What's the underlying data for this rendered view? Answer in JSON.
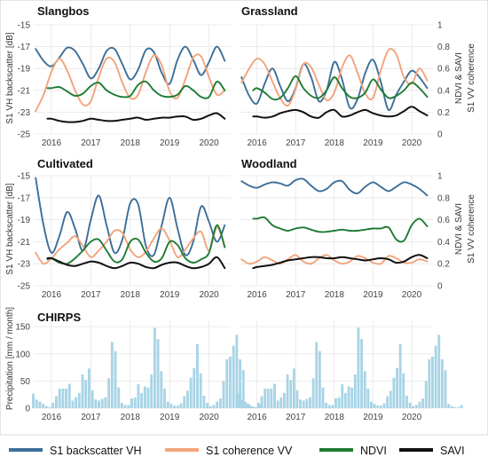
{
  "colors": {
    "s1_backscatter_vh": "#3c6e98",
    "s1_coherence_vv": "#f2a47b",
    "ndvi": "#1e7b34",
    "savi": "#111111",
    "precip_bar": "#a8d4e6"
  },
  "axis_labels": {
    "backscatter": "S1 VH backscatter [dB]",
    "ndvi_savi": "NDVI & SAVI",
    "coherence": "S1 VV coherence",
    "precip": "Precipitation [mm / month]"
  },
  "ticks": {
    "years": [
      "2016",
      "2017",
      "2018",
      "2019",
      "2020"
    ],
    "backscatter": [
      "-25",
      "-23",
      "-21",
      "-19",
      "-17",
      "-15"
    ],
    "right": [
      "0",
      "0.2",
      "0.4",
      "0.6",
      "0.8",
      "1"
    ],
    "precip": [
      "0",
      "50",
      "100",
      "150"
    ]
  },
  "legend": [
    "S1 backscatter VH",
    "S1 coherence VV",
    "NDVI",
    "SAVI"
  ],
  "chart_data": [
    {
      "type": "line",
      "title": "Slangbos",
      "ylabel": "S1 VH backscatter [dB]",
      "ylim": [
        -25,
        -15
      ],
      "y2label": "",
      "y2lim": [
        0,
        1
      ],
      "x": [
        2015.6,
        2015.8,
        2016.0,
        2016.2,
        2016.4,
        2016.6,
        2016.8,
        2017.0,
        2017.2,
        2017.4,
        2017.6,
        2017.8,
        2018.0,
        2018.2,
        2018.4,
        2018.6,
        2018.8,
        2019.0,
        2019.2,
        2019.4,
        2019.6,
        2019.8,
        2020.0,
        2020.2,
        2020.4
      ],
      "series": [
        {
          "name": "S1 backscatter VH",
          "axis": "left",
          "values": [
            -17.2,
            -18.3,
            -18.8,
            -18.0,
            -17.1,
            -17.4,
            -18.6,
            -19.9,
            -19.0,
            -17.4,
            -17.2,
            -18.6,
            -20.0,
            -19.1,
            -17.3,
            -17.5,
            -19.4,
            -20.4,
            -18.2,
            -17.0,
            -18.2,
            -19.6,
            -18.4,
            -17.0,
            -18.3
          ]
        },
        {
          "name": "S1 coherence VV",
          "axis": "right",
          "values": [
            0.21,
            0.36,
            0.57,
            0.69,
            0.58,
            0.4,
            0.27,
            0.3,
            0.52,
            0.69,
            0.66,
            0.47,
            0.33,
            0.36,
            0.57,
            0.72,
            0.63,
            0.39,
            0.33,
            0.5,
            0.7,
            0.71,
            0.52,
            0.36,
            0.4
          ]
        },
        {
          "name": "NDVI",
          "axis": "right",
          "x": [
            2015.9,
            2016.0,
            2016.2,
            2016.4,
            2016.6,
            2016.8,
            2017.0,
            2017.2,
            2017.4,
            2017.6,
            2017.8,
            2018.0,
            2018.2,
            2018.4,
            2018.6,
            2018.8,
            2019.0,
            2019.2,
            2019.4,
            2019.6,
            2019.8,
            2020.0,
            2020.2,
            2020.4
          ],
          "values": [
            0.42,
            0.42,
            0.43,
            0.39,
            0.35,
            0.37,
            0.44,
            0.47,
            0.4,
            0.36,
            0.34,
            0.35,
            0.45,
            0.48,
            0.4,
            0.35,
            0.34,
            0.36,
            0.44,
            0.4,
            0.34,
            0.34,
            0.48,
            0.4
          ]
        },
        {
          "name": "SAVI",
          "axis": "right",
          "x": [
            2015.9,
            2016.0,
            2016.2,
            2016.4,
            2016.6,
            2016.8,
            2017.0,
            2017.2,
            2017.4,
            2017.6,
            2017.8,
            2018.0,
            2018.2,
            2018.4,
            2018.6,
            2018.8,
            2019.0,
            2019.2,
            2019.4,
            2019.6,
            2019.8,
            2020.0,
            2020.2,
            2020.4
          ],
          "values": [
            0.14,
            0.14,
            0.12,
            0.11,
            0.11,
            0.12,
            0.14,
            0.13,
            0.12,
            0.12,
            0.13,
            0.14,
            0.15,
            0.13,
            0.14,
            0.15,
            0.15,
            0.16,
            0.16,
            0.13,
            0.14,
            0.17,
            0.19,
            0.14
          ]
        }
      ]
    },
    {
      "type": "line",
      "title": "Grassland",
      "ylabel": "",
      "ylim": [
        -25,
        -15
      ],
      "y2label": "NDVI & SAVI / S1 VV coherence",
      "y2lim": [
        0,
        1
      ],
      "x": [
        2015.6,
        2015.8,
        2016.0,
        2016.2,
        2016.4,
        2016.6,
        2016.8,
        2017.0,
        2017.2,
        2017.4,
        2017.6,
        2017.8,
        2018.0,
        2018.2,
        2018.4,
        2018.6,
        2018.8,
        2019.0,
        2019.2,
        2019.4,
        2019.6,
        2019.8,
        2020.0,
        2020.2,
        2020.4
      ],
      "series": [
        {
          "name": "S1 backscatter VH",
          "axis": "left",
          "values": [
            -19.8,
            -21.5,
            -22.2,
            -20.4,
            -19.0,
            -20.6,
            -22.0,
            -20.8,
            -18.6,
            -19.8,
            -22.0,
            -21.0,
            -18.4,
            -20.0,
            -22.6,
            -21.8,
            -19.4,
            -18.2,
            -20.2,
            -22.8,
            -21.4,
            -20.2,
            -19.2,
            -19.8,
            -20.8
          ]
        },
        {
          "name": "S1 coherence VV",
          "axis": "right",
          "values": [
            0.47,
            0.6,
            0.69,
            0.64,
            0.48,
            0.33,
            0.26,
            0.41,
            0.64,
            0.61,
            0.45,
            0.31,
            0.38,
            0.61,
            0.72,
            0.56,
            0.37,
            0.33,
            0.58,
            0.77,
            0.73,
            0.52,
            0.46,
            0.6,
            0.49
          ]
        },
        {
          "name": "NDVI",
          "axis": "right",
          "x": [
            2015.9,
            2016.0,
            2016.2,
            2016.4,
            2016.6,
            2016.8,
            2017.0,
            2017.2,
            2017.4,
            2017.6,
            2017.8,
            2018.0,
            2018.2,
            2018.4,
            2018.6,
            2018.8,
            2019.0,
            2019.2,
            2019.4,
            2019.6,
            2019.8,
            2020.0,
            2020.2,
            2020.4
          ],
          "values": [
            0.4,
            0.42,
            0.38,
            0.32,
            0.33,
            0.42,
            0.53,
            0.42,
            0.35,
            0.33,
            0.4,
            0.52,
            0.42,
            0.34,
            0.33,
            0.38,
            0.5,
            0.41,
            0.33,
            0.35,
            0.4,
            0.47,
            0.42,
            0.34
          ]
        },
        {
          "name": "SAVI",
          "axis": "right",
          "x": [
            2015.9,
            2016.0,
            2016.2,
            2016.4,
            2016.6,
            2016.8,
            2017.0,
            2017.2,
            2017.4,
            2017.6,
            2017.8,
            2018.0,
            2018.2,
            2018.4,
            2018.6,
            2018.8,
            2019.0,
            2019.2,
            2019.4,
            2019.6,
            2019.8,
            2020.0,
            2020.2,
            2020.4
          ],
          "values": [
            0.16,
            0.16,
            0.15,
            0.16,
            0.19,
            0.21,
            0.22,
            0.2,
            0.16,
            0.15,
            0.2,
            0.22,
            0.16,
            0.17,
            0.2,
            0.22,
            0.19,
            0.17,
            0.16,
            0.17,
            0.21,
            0.25,
            0.21,
            0.17
          ]
        }
      ]
    },
    {
      "type": "line",
      "title": "Cultivated",
      "ylabel": "S1 VH backscatter [dB]",
      "ylim": [
        -25,
        -15
      ],
      "y2label": "",
      "y2lim": [
        0,
        1
      ],
      "x": [
        2015.6,
        2015.8,
        2016.0,
        2016.2,
        2016.4,
        2016.6,
        2016.8,
        2017.0,
        2017.2,
        2017.4,
        2017.6,
        2017.8,
        2018.0,
        2018.2,
        2018.4,
        2018.6,
        2018.8,
        2019.0,
        2019.2,
        2019.4,
        2019.6,
        2019.8,
        2020.0,
        2020.2,
        2020.4
      ],
      "series": [
        {
          "name": "S1 backscatter VH",
          "axis": "left",
          "values": [
            -15.2,
            -19.5,
            -22.0,
            -20.5,
            -18.3,
            -19.8,
            -21.8,
            -19.0,
            -16.8,
            -19.5,
            -22.0,
            -20.8,
            -17.5,
            -17.6,
            -21.4,
            -22.2,
            -19.5,
            -17.0,
            -19.8,
            -22.2,
            -21.0,
            -17.8,
            -19.2,
            -21.0,
            -19.5
          ]
        },
        {
          "name": "S1 coherence VV",
          "axis": "right",
          "values": [
            0.3,
            0.2,
            0.25,
            0.33,
            0.39,
            0.45,
            0.36,
            0.26,
            0.32,
            0.4,
            0.5,
            0.48,
            0.33,
            0.26,
            0.31,
            0.43,
            0.52,
            0.41,
            0.26,
            0.33,
            0.43,
            0.49,
            0.32,
            0.53,
            0.36
          ]
        },
        {
          "name": "NDVI",
          "axis": "right",
          "x": [
            2015.9,
            2016.0,
            2016.2,
            2016.4,
            2016.6,
            2016.8,
            2017.0,
            2017.2,
            2017.4,
            2017.6,
            2017.8,
            2018.0,
            2018.2,
            2018.4,
            2018.6,
            2018.8,
            2019.0,
            2019.2,
            2019.4,
            2019.6,
            2019.8,
            2020.0,
            2020.2,
            2020.4
          ],
          "values": [
            0.24,
            0.25,
            0.21,
            0.2,
            0.25,
            0.32,
            0.4,
            0.42,
            0.32,
            0.22,
            0.24,
            0.4,
            0.42,
            0.3,
            0.22,
            0.25,
            0.4,
            0.37,
            0.25,
            0.21,
            0.24,
            0.3,
            0.55,
            0.35
          ]
        },
        {
          "name": "SAVI",
          "axis": "right",
          "x": [
            2015.9,
            2016.0,
            2016.2,
            2016.4,
            2016.6,
            2016.8,
            2017.0,
            2017.2,
            2017.4,
            2017.6,
            2017.8,
            2018.0,
            2018.2,
            2018.4,
            2018.6,
            2018.8,
            2019.0,
            2019.2,
            2019.4,
            2019.6,
            2019.8,
            2020.0,
            2020.2,
            2020.4
          ],
          "values": [
            0.25,
            0.25,
            0.22,
            0.19,
            0.18,
            0.2,
            0.22,
            0.21,
            0.18,
            0.16,
            0.18,
            0.21,
            0.2,
            0.17,
            0.16,
            0.19,
            0.21,
            0.21,
            0.18,
            0.16,
            0.17,
            0.2,
            0.26,
            0.16
          ]
        }
      ]
    },
    {
      "type": "line",
      "title": "Woodland",
      "ylabel": "",
      "ylim": [
        -25,
        -15
      ],
      "y2label": "NDVI & SAVI / S1 VV coherence",
      "y2lim": [
        0,
        1
      ],
      "x": [
        2015.6,
        2015.8,
        2016.0,
        2016.2,
        2016.4,
        2016.6,
        2016.8,
        2017.0,
        2017.2,
        2017.4,
        2017.6,
        2017.8,
        2018.0,
        2018.2,
        2018.4,
        2018.6,
        2018.8,
        2019.0,
        2019.2,
        2019.4,
        2019.6,
        2019.8,
        2020.0,
        2020.2,
        2020.4
      ],
      "series": [
        {
          "name": "S1 backscatter VH",
          "axis": "left",
          "values": [
            -15.5,
            -15.9,
            -16.1,
            -15.8,
            -15.6,
            -15.7,
            -15.9,
            -15.4,
            -15.3,
            -15.9,
            -16.4,
            -16.2,
            -15.6,
            -15.5,
            -16.3,
            -16.6,
            -16.0,
            -15.6,
            -16.0,
            -16.4,
            -16.0,
            -15.6,
            -15.8,
            -16.2,
            -16.8
          ]
        },
        {
          "name": "S1 coherence VV",
          "axis": "right",
          "values": [
            0.24,
            0.2,
            0.22,
            0.26,
            0.23,
            0.2,
            0.24,
            0.28,
            0.22,
            0.2,
            0.25,
            0.28,
            0.23,
            0.2,
            0.22,
            0.27,
            0.25,
            0.21,
            0.2,
            0.27,
            0.25,
            0.21,
            0.21,
            0.24,
            0.22
          ]
        },
        {
          "name": "NDVI",
          "axis": "right",
          "x": [
            2015.9,
            2016.0,
            2016.2,
            2016.4,
            2016.6,
            2016.8,
            2017.0,
            2017.2,
            2017.4,
            2017.6,
            2017.8,
            2018.0,
            2018.2,
            2018.4,
            2018.6,
            2018.8,
            2019.0,
            2019.2,
            2019.4,
            2019.6,
            2019.8,
            2020.0,
            2020.2,
            2020.4
          ],
          "values": [
            0.61,
            0.61,
            0.62,
            0.55,
            0.52,
            0.5,
            0.52,
            0.53,
            0.51,
            0.49,
            0.49,
            0.5,
            0.51,
            0.5,
            0.5,
            0.51,
            0.52,
            0.52,
            0.53,
            0.42,
            0.41,
            0.55,
            0.61,
            0.54
          ]
        },
        {
          "name": "SAVI",
          "axis": "right",
          "x": [
            2015.9,
            2016.0,
            2016.2,
            2016.4,
            2016.6,
            2016.8,
            2017.0,
            2017.2,
            2017.4,
            2017.6,
            2017.8,
            2018.0,
            2018.2,
            2018.4,
            2018.6,
            2018.8,
            2019.0,
            2019.2,
            2019.4,
            2019.6,
            2019.8,
            2020.0,
            2020.2,
            2020.4
          ],
          "values": [
            0.16,
            0.17,
            0.18,
            0.19,
            0.21,
            0.23,
            0.24,
            0.25,
            0.26,
            0.26,
            0.25,
            0.25,
            0.26,
            0.25,
            0.24,
            0.23,
            0.24,
            0.25,
            0.24,
            0.21,
            0.22,
            0.26,
            0.28,
            0.25
          ]
        }
      ]
    },
    {
      "type": "bar",
      "title": "CHIRPS",
      "ylabel": "Precipitation [mm / month]",
      "ylim": [
        0,
        160
      ],
      "x_start": 2015.54,
      "x_step": 0.0833,
      "values": [
        27,
        16,
        12,
        8,
        4,
        2,
        10,
        22,
        36,
        36,
        36,
        45,
        14,
        20,
        28,
        62,
        52,
        73,
        33,
        16,
        14,
        17,
        20,
        55,
        122,
        105,
        38,
        10,
        6,
        6,
        18,
        20,
        44,
        28,
        40,
        38,
        62,
        148,
        127,
        68,
        36,
        12,
        8,
        5,
        5,
        9,
        22,
        32,
        56,
        74,
        118,
        64,
        23,
        10,
        4,
        6,
        12,
        18,
        50,
        90,
        95,
        115,
        135,
        90,
        70,
        8,
        4,
        2,
        2,
        6
      ]
    },
    {
      "type": "bar",
      "title": "",
      "ylabel": "",
      "ylim": [
        0,
        160
      ],
      "x_start": 2015.54,
      "x_step": 0.0833,
      "values": [
        27,
        16,
        12,
        8,
        4,
        2,
        10,
        22,
        36,
        36,
        36,
        45,
        14,
        20,
        28,
        62,
        52,
        73,
        33,
        16,
        14,
        17,
        20,
        55,
        122,
        105,
        38,
        10,
        6,
        6,
        18,
        20,
        44,
        28,
        40,
        38,
        62,
        148,
        127,
        68,
        36,
        12,
        8,
        5,
        5,
        9,
        22,
        32,
        56,
        74,
        118,
        64,
        23,
        10,
        4,
        6,
        12,
        18,
        50,
        90,
        95,
        115,
        135,
        90,
        70,
        8,
        4,
        2,
        2,
        6
      ]
    }
  ]
}
